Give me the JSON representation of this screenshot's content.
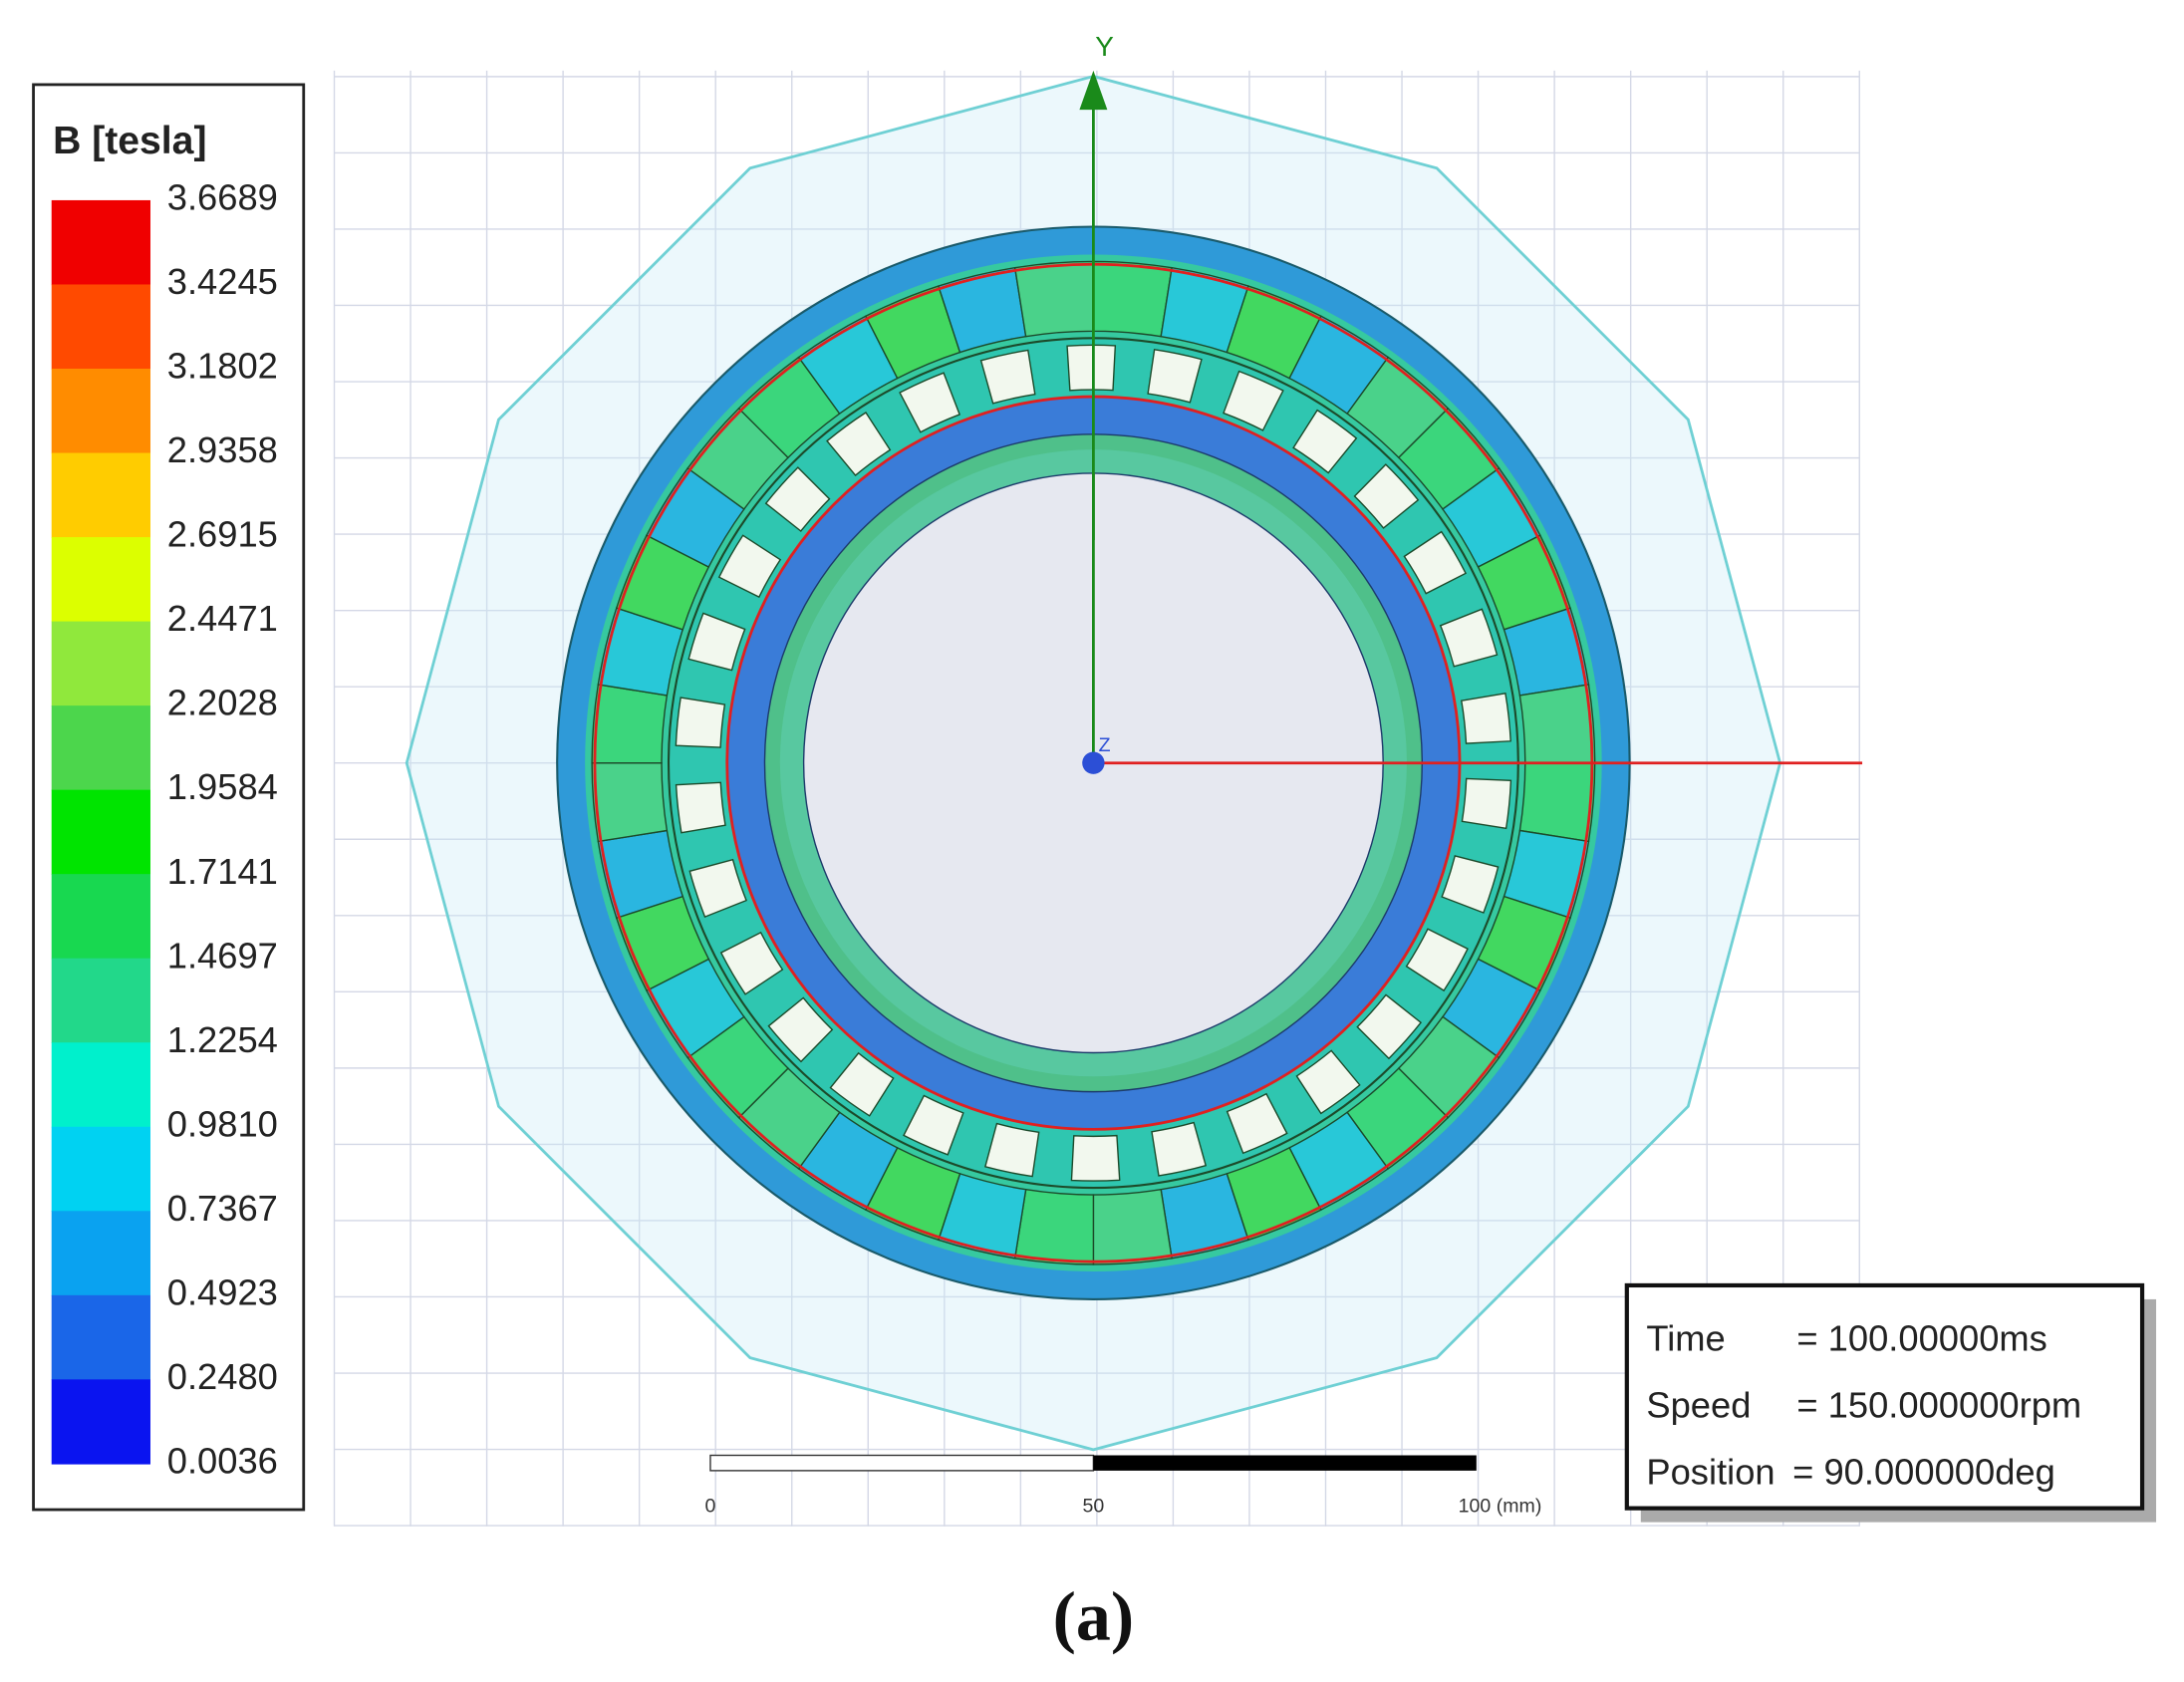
{
  "legend": {
    "title": "B [tesla]",
    "levels": [
      "3.6689",
      "3.4245",
      "3.1802",
      "2.9358",
      "2.6915",
      "2.4471",
      "2.2028",
      "1.9584",
      "1.7141",
      "1.4697",
      "1.2254",
      "0.9810",
      "0.7367",
      "0.4923",
      "0.2480",
      "0.0036"
    ]
  },
  "axes": {
    "y_label": "Y",
    "z_label": "Z"
  },
  "scale_bar": {
    "labels": [
      "0",
      "50",
      "100 (mm)"
    ]
  },
  "info": {
    "rows": [
      {
        "label": "Time",
        "value": "= 100.00000ms"
      },
      {
        "label": "Speed",
        "value": "= 150.000000rpm"
      },
      {
        "label": "Position",
        "value": "= 90.000000deg"
      }
    ]
  },
  "caption": "(a)"
}
